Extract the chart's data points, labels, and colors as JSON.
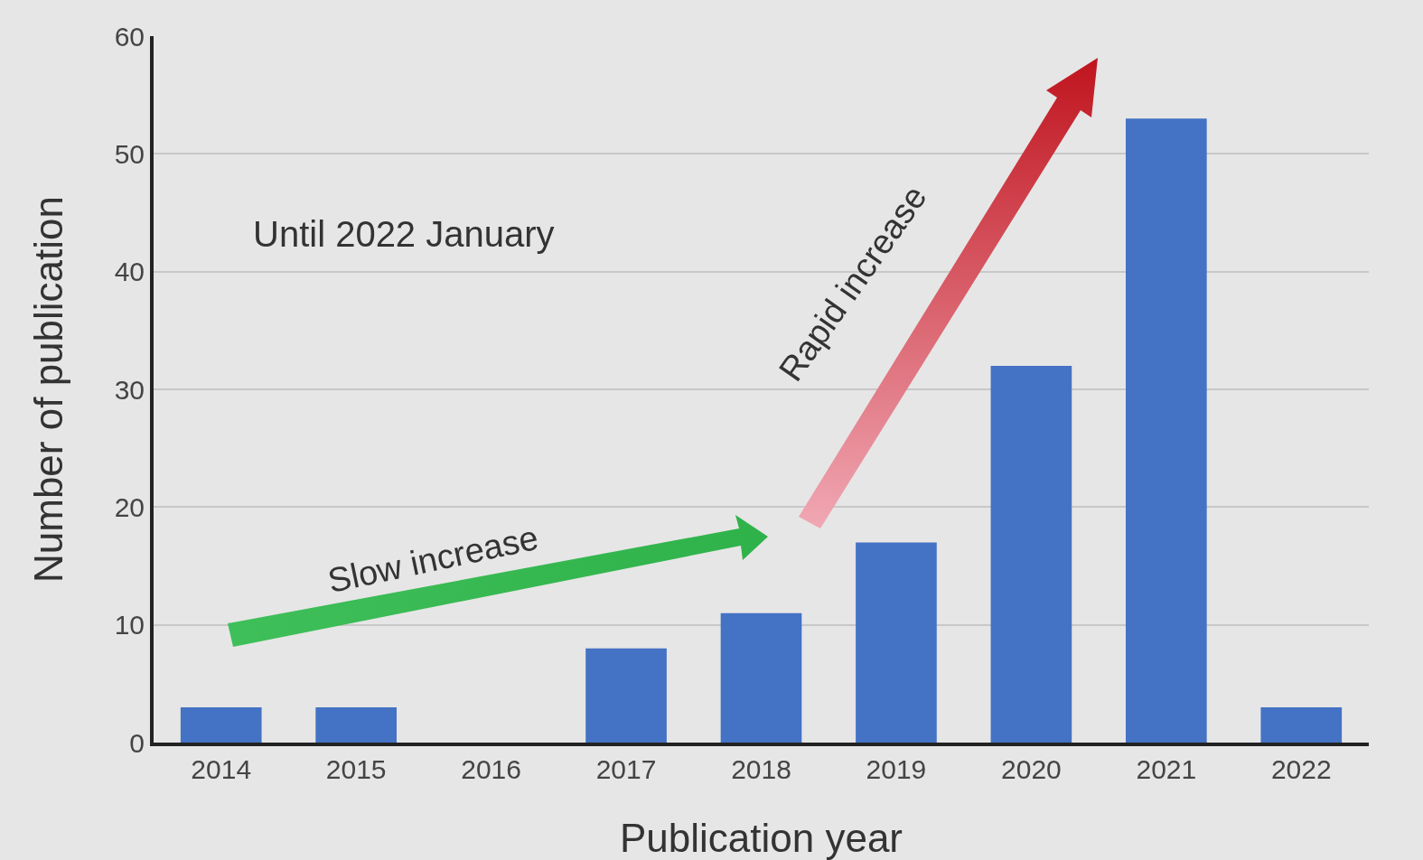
{
  "chart_data": {
    "type": "bar",
    "xlabel": "Publication year",
    "ylabel": "Number of publication",
    "categories": [
      "2014",
      "2015",
      "2016",
      "2017",
      "2018",
      "2019",
      "2020",
      "2021",
      "2022"
    ],
    "values": [
      3,
      3,
      0,
      8,
      11,
      17,
      32,
      53,
      3
    ],
    "color": "#4472c4",
    "ylim": [
      0,
      60
    ],
    "yticks": [
      0,
      10,
      20,
      30,
      40,
      50,
      60
    ],
    "grid": "y",
    "annotations": [
      "Until 2022 January",
      "Slow increase",
      "Rapid increase"
    ]
  }
}
